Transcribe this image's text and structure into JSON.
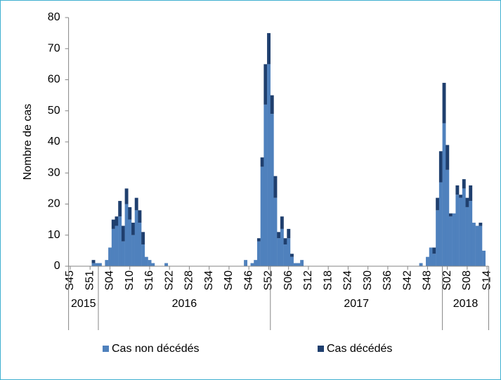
{
  "chart_data": {
    "type": "stacked-bar",
    "y_label": "Nombre de cas",
    "ylim": [
      0,
      80
    ],
    "yticks": [
      0,
      10,
      20,
      30,
      40,
      50,
      60,
      70,
      80
    ],
    "categories": [
      "S45",
      null,
      null,
      null,
      null,
      null,
      "S51",
      null,
      null,
      null,
      null,
      null,
      "S04",
      null,
      null,
      null,
      null,
      null,
      "S10",
      null,
      null,
      null,
      null,
      null,
      "S16",
      null,
      null,
      null,
      null,
      null,
      "S22",
      null,
      null,
      null,
      null,
      null,
      "S28",
      null,
      null,
      null,
      null,
      null,
      "S34",
      null,
      null,
      null,
      null,
      null,
      "S40",
      null,
      null,
      null,
      null,
      null,
      "S46",
      null,
      null,
      null,
      null,
      null,
      "S52",
      null,
      null,
      null,
      null,
      null,
      "S06",
      null,
      null,
      null,
      null,
      null,
      "S12",
      null,
      null,
      null,
      null,
      null,
      "S18",
      null,
      null,
      null,
      null,
      null,
      "S24",
      null,
      null,
      null,
      null,
      null,
      "S30",
      null,
      null,
      null,
      null,
      null,
      "S36",
      null,
      null,
      null,
      null,
      null,
      "S42",
      null,
      null,
      null,
      null,
      null,
      "S48",
      null,
      null,
      null,
      null,
      null,
      "S02",
      null,
      null,
      null,
      null,
      null,
      "S08",
      null,
      null,
      null,
      null,
      null,
      "S14"
    ],
    "year_groups": [
      {
        "label": "2015",
        "weeks": 9
      },
      {
        "label": "2016",
        "weeks": 52
      },
      {
        "label": "2017",
        "weeks": 52
      },
      {
        "label": "2018",
        "weeks": 14
      }
    ],
    "series": [
      {
        "name": "Cas non décédés",
        "color": "#4f81bd",
        "values": [
          0,
          0,
          0,
          0,
          0,
          0,
          0,
          1,
          1,
          1,
          0,
          2,
          6,
          12,
          13,
          16,
          8,
          20,
          15,
          10,
          18,
          14,
          7,
          3,
          2,
          1,
          0,
          0,
          0,
          1,
          0,
          0,
          0,
          0,
          0,
          0,
          0,
          0,
          0,
          0,
          0,
          0,
          0,
          0,
          0,
          0,
          0,
          0,
          0,
          0,
          0,
          0,
          0,
          2,
          0,
          1,
          2,
          8,
          32,
          52,
          65,
          49,
          22,
          9,
          12,
          7,
          9,
          3,
          1,
          1,
          2,
          0,
          0,
          0,
          0,
          0,
          0,
          0,
          0,
          0,
          0,
          0,
          0,
          0,
          0,
          0,
          0,
          0,
          0,
          0,
          0,
          0,
          0,
          0,
          0,
          0,
          0,
          0,
          0,
          0,
          0,
          0,
          0,
          0,
          0,
          0,
          1,
          0,
          3,
          6,
          4,
          18,
          27,
          46,
          31,
          16,
          17,
          23,
          22,
          25,
          19,
          21,
          14,
          13,
          13,
          5,
          0
        ]
      },
      {
        "name": "Cas décédés",
        "color": "#1f3f6e",
        "values": [
          0,
          0,
          0,
          0,
          0,
          0,
          0,
          1,
          0,
          0,
          0,
          0,
          0,
          3,
          3,
          5,
          5,
          5,
          4,
          4,
          4,
          4,
          4,
          0,
          0,
          0,
          0,
          0,
          0,
          0,
          0,
          0,
          0,
          0,
          0,
          0,
          0,
          0,
          0,
          0,
          0,
          0,
          0,
          0,
          0,
          0,
          0,
          0,
          0,
          0,
          0,
          0,
          0,
          0,
          0,
          0,
          0,
          1,
          3,
          13,
          10,
          6,
          7,
          2,
          4,
          2,
          3,
          1,
          0,
          0,
          0,
          0,
          0,
          0,
          0,
          0,
          0,
          0,
          0,
          0,
          0,
          0,
          0,
          0,
          0,
          0,
          0,
          0,
          0,
          0,
          0,
          0,
          0,
          0,
          0,
          0,
          0,
          0,
          0,
          0,
          0,
          0,
          0,
          0,
          0,
          0,
          0,
          0,
          0,
          0,
          2,
          4,
          10,
          13,
          8,
          1,
          0,
          3,
          1,
          3,
          3,
          5,
          0,
          0,
          1,
          0,
          0
        ]
      }
    ]
  }
}
